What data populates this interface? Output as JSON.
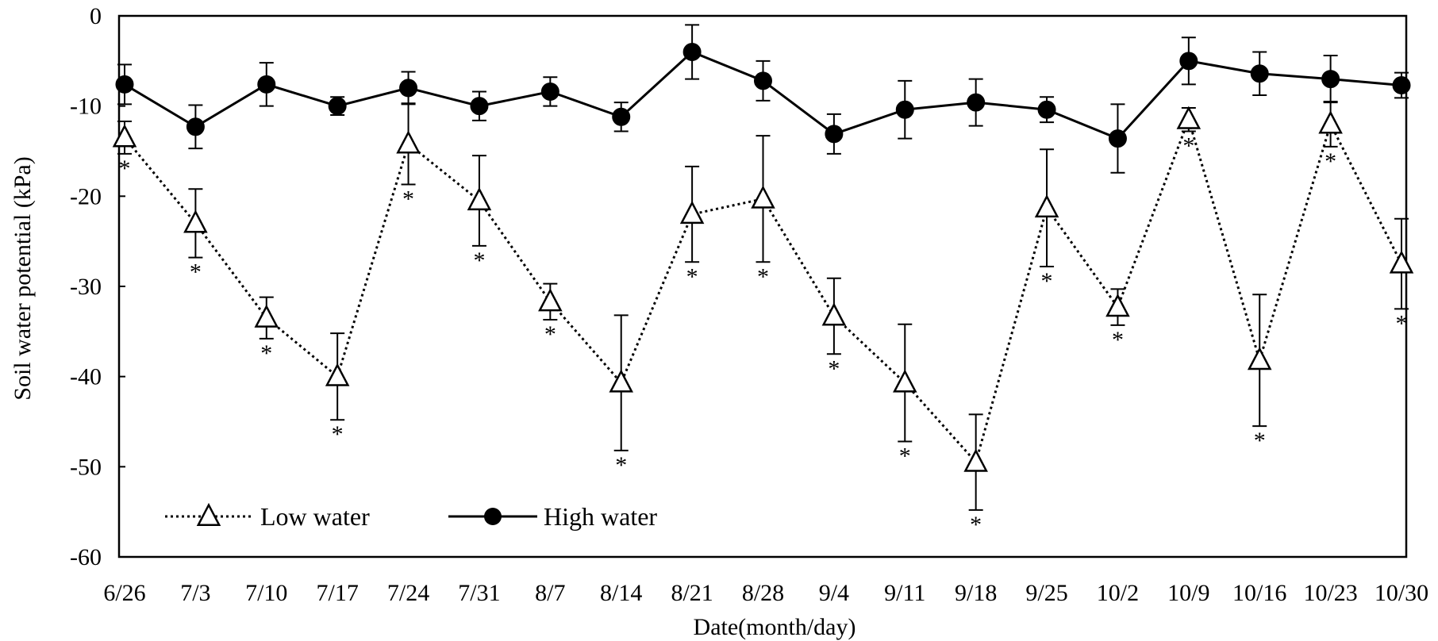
{
  "chart_data": {
    "type": "line",
    "title": "",
    "xlabel": "Date(month/day)",
    "ylabel": "Soil water potential (kPa)",
    "ylim": [
      -60,
      0
    ],
    "yticks": [
      0,
      -10,
      -20,
      -30,
      -40,
      -50,
      -60
    ],
    "grid": false,
    "legend_position": "bottom-left",
    "categories": [
      "6/26",
      "7/3",
      "7/10",
      "7/17",
      "7/24",
      "7/31",
      "8/7",
      "8/14",
      "8/21",
      "8/28",
      "9/4",
      "9/11",
      "9/18",
      "9/25",
      "10/2",
      "10/9",
      "10/16",
      "10/23",
      "10/30"
    ],
    "series": [
      {
        "name": "Low water",
        "line_style": "dotted",
        "marker": "open-triangle",
        "color": "#000000",
        "values": [
          -13.5,
          -23,
          -33.5,
          -40,
          -14.2,
          -20.5,
          -31.7,
          -40.7,
          -22,
          -20.3,
          -33.3,
          -40.7,
          -49.5,
          -21.3,
          -32.3,
          -11.5,
          -38.2,
          -12,
          -27.5
        ],
        "error": [
          1.8,
          3.8,
          2.3,
          4.8,
          4.5,
          5,
          2.0,
          7.5,
          5.3,
          7,
          4.2,
          6.5,
          5.3,
          6.5,
          2.0,
          1.3,
          7.3,
          2.5,
          5.0
        ],
        "significant": [
          true,
          true,
          true,
          true,
          true,
          true,
          true,
          true,
          true,
          true,
          true,
          true,
          true,
          true,
          true,
          true,
          true,
          true,
          true
        ]
      },
      {
        "name": "High water",
        "line_style": "solid",
        "marker": "filled-circle",
        "color": "#000000",
        "values": [
          -7.6,
          -12.3,
          -7.6,
          -10.0,
          -8.0,
          -10.0,
          -8.4,
          -11.2,
          -4.0,
          -7.2,
          -13.1,
          -10.4,
          -9.6,
          -10.4,
          -13.6,
          -5.0,
          -6.4,
          -7.0,
          -7.7
        ],
        "error": [
          2.2,
          2.4,
          2.4,
          1.0,
          1.8,
          1.6,
          1.6,
          1.6,
          3.0,
          2.2,
          2.2,
          3.2,
          2.6,
          1.4,
          3.8,
          2.6,
          2.4,
          2.6,
          1.4
        ]
      }
    ],
    "significance_marker": "*"
  }
}
